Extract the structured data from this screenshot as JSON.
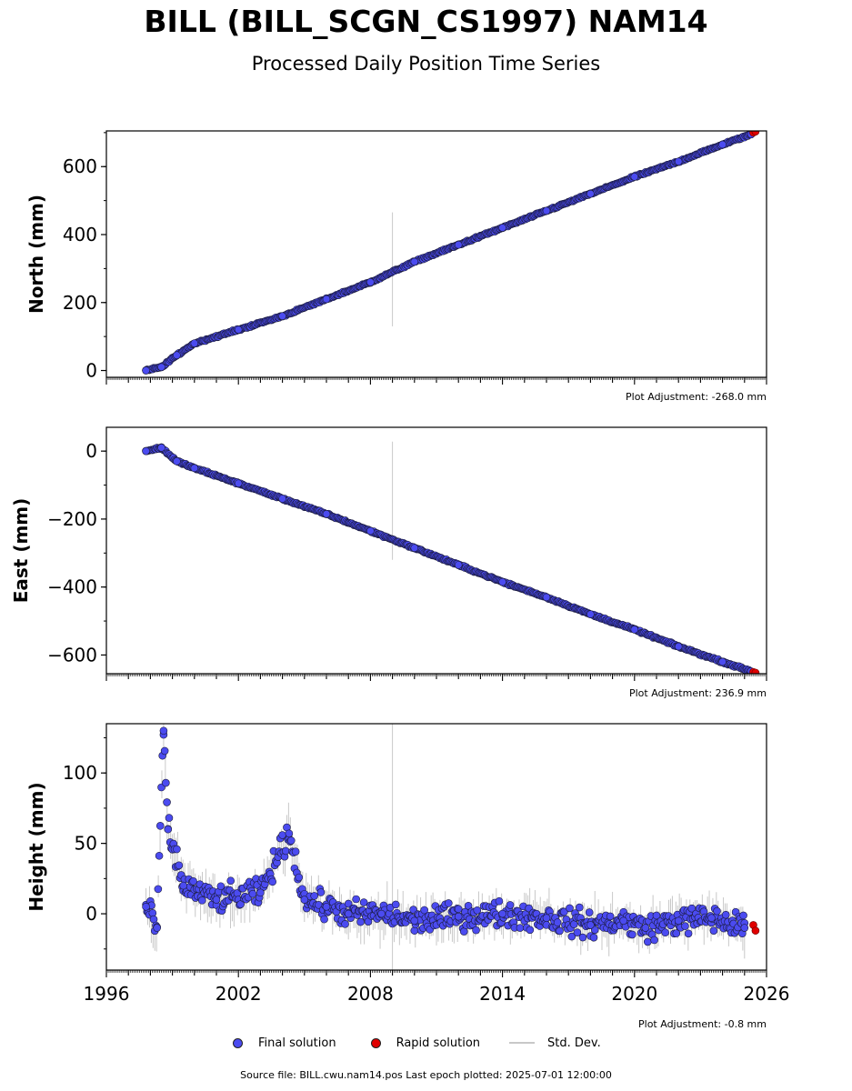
{
  "header": {
    "title": "BILL (BILL_SCGN_CS1997) NAM14",
    "subtitle": "Processed Daily Position Time Series"
  },
  "legend": {
    "final_label": "Final solution",
    "rapid_label": "Rapid solution",
    "std_label": "Std. Dev.",
    "final_color": "#4b4bf0",
    "rapid_color": "#e00000",
    "std_color": "#c8c8c8"
  },
  "footer": {
    "source": "Source file: BILL.cwu.nam14.pos  Last epoch plotted: 2025-07-01 12:00:00"
  },
  "chart_data": [
    {
      "type": "scatter",
      "ylabel": "North (mm)",
      "xlim": [
        1996,
        2026
      ],
      "ylim": [
        -20,
        705
      ],
      "yticks": [
        0,
        200,
        400,
        600
      ],
      "ytick_labels": [
        "0",
        "200",
        "400",
        "600"
      ],
      "adjustment": "Plot Adjustment: -268.0 mm",
      "series": [
        {
          "name": "Final solution",
          "x": [
            1997.8,
            1998.5,
            1999.2,
            2000.0,
            2002.0,
            2004.0,
            2006.0,
            2008.0,
            2010.0,
            2012.0,
            2014.0,
            2016.0,
            2018.0,
            2020.0,
            2022.0,
            2024.0,
            2025.3
          ],
          "y": [
            0,
            10,
            45,
            80,
            120,
            160,
            210,
            260,
            320,
            370,
            420,
            470,
            520,
            570,
            615,
            665,
            695
          ]
        },
        {
          "name": "Rapid solution",
          "x": [
            2025.4,
            2025.5
          ],
          "y": [
            700,
            703
          ]
        }
      ]
    },
    {
      "type": "scatter",
      "ylabel": "East (mm)",
      "xlim": [
        1996,
        2026
      ],
      "ylim": [
        -655,
        70
      ],
      "yticks": [
        0,
        -200,
        -400,
        -600
      ],
      "ytick_labels": [
        "0",
        "−200",
        "−400",
        "−600"
      ],
      "adjustment": "Plot Adjustment: 236.9 mm",
      "series": [
        {
          "name": "Final solution",
          "x": [
            1997.8,
            1998.5,
            1999.2,
            2000.0,
            2002.0,
            2004.0,
            2006.0,
            2008.0,
            2010.0,
            2012.0,
            2014.0,
            2016.0,
            2018.0,
            2020.0,
            2022.0,
            2024.0,
            2025.3
          ],
          "y": [
            0,
            10,
            -30,
            -50,
            -95,
            -140,
            -185,
            -235,
            -285,
            -335,
            -385,
            -430,
            -480,
            -525,
            -575,
            -620,
            -648
          ]
        },
        {
          "name": "Rapid solution",
          "x": [
            2025.4,
            2025.5
          ],
          "y": [
            -650,
            -652
          ]
        }
      ]
    },
    {
      "type": "scatter",
      "ylabel": "Height (mm)",
      "xlim": [
        1996,
        2026
      ],
      "ylim": [
        -40,
        135
      ],
      "yticks": [
        0,
        50,
        100
      ],
      "ytick_labels": [
        "0",
        "50",
        "100"
      ],
      "xticks": [
        1996,
        2002,
        2008,
        2014,
        2020,
        2026
      ],
      "xtick_labels": [
        "1996",
        "2002",
        "2008",
        "2014",
        "2020",
        "2026"
      ],
      "adjustment": "Plot Adjustment: -0.8 mm",
      "series": [
        {
          "name": "Final solution",
          "x": [
            1997.8,
            1998.3,
            1998.6,
            1998.8,
            1999.5,
            2001.0,
            2003.0,
            2004.3,
            2005.0,
            2006.0,
            2007.0,
            2008.5,
            2010.0,
            2012.0,
            2014.0,
            2016.0,
            2018.0,
            2019.5,
            2020.5,
            2022.0,
            2023.5,
            2025.0
          ],
          "y": [
            5,
            -10,
            130,
            60,
            20,
            10,
            15,
            57,
            10,
            5,
            0,
            0,
            -5,
            -2,
            0,
            -3,
            -8,
            -5,
            -10,
            -5,
            -3,
            -10
          ]
        },
        {
          "name": "Rapid solution",
          "x": [
            2025.4,
            2025.5
          ],
          "y": [
            -8,
            -12
          ]
        }
      ]
    }
  ]
}
